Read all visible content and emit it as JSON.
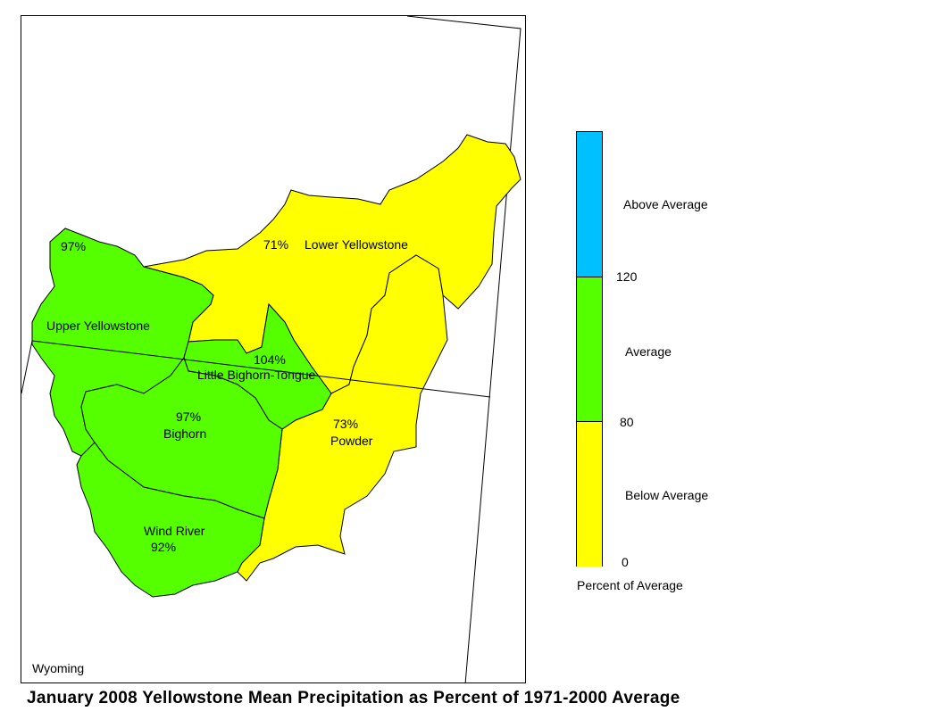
{
  "title": "January 2008 Yellowstone Mean Precipitation as Percent of 1971-2000 Average",
  "state_label": "Wyoming",
  "colors": {
    "above": "#00c0ff",
    "average": "#55ff00",
    "below": "#ffff00",
    "outline": "#000000"
  },
  "legend": {
    "caption": "Percent of Average",
    "classes": [
      {
        "label": "Above Average",
        "color": "#00c0ff"
      },
      {
        "label": "Average",
        "color": "#55ff00"
      },
      {
        "label": "Below Average",
        "color": "#ffff00"
      }
    ],
    "breaks": [
      "120",
      "80",
      "0"
    ]
  },
  "basins": [
    {
      "name": "Upper Yellowstone",
      "value": "97%",
      "class": "average"
    },
    {
      "name": "Lower Yellowstone",
      "value": "71%",
      "class": "below"
    },
    {
      "name": "Little Bighorn-Tongue",
      "value": "104%",
      "class": "average"
    },
    {
      "name": "Bighorn",
      "value": "97%",
      "class": "average"
    },
    {
      "name": "Powder",
      "value": "73%",
      "class": "below"
    },
    {
      "name": "Wind River",
      "value": "92%",
      "class": "average"
    }
  ]
}
